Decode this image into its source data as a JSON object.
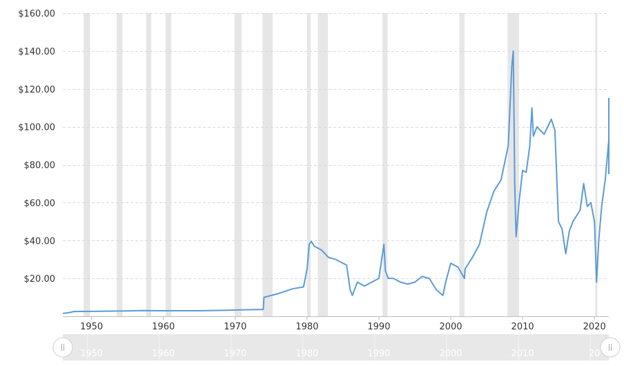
{
  "chart_data": {
    "type": "line",
    "y_tick_labels": [
      "$20.00",
      "$40.00",
      "$60.00",
      "$80.00",
      "$100.00",
      "$120.00",
      "$140.00",
      "$160.00"
    ],
    "y_tick_values": [
      20,
      40,
      60,
      80,
      100,
      120,
      140,
      160
    ],
    "x_tick_labels": [
      "1950",
      "1960",
      "1970",
      "1980",
      "1990",
      "2000",
      "2010",
      "2020"
    ],
    "x_tick_values": [
      1950,
      1960,
      1970,
      1980,
      1990,
      2000,
      2010,
      2020
    ],
    "navigator_tick_labels": [
      "1950",
      "1960",
      "1970",
      "1980",
      "1990",
      "2000",
      "2010",
      "20"
    ],
    "xlim": [
      1946,
      2022
    ],
    "ylim": [
      0,
      160
    ],
    "grid": true,
    "line_color": "#5b9bd5",
    "shade_color": "#e6e6e6",
    "recession_bands": [
      [
        1948.9,
        1949.8
      ],
      [
        1953.5,
        1954.3
      ],
      [
        1957.6,
        1958.3
      ],
      [
        1960.3,
        1961.1
      ],
      [
        1969.9,
        1970.9
      ],
      [
        1973.8,
        1975.2
      ],
      [
        1980.0,
        1980.5
      ],
      [
        1981.5,
        1982.9
      ],
      [
        1990.5,
        1991.2
      ],
      [
        2001.2,
        2001.9
      ],
      [
        2007.9,
        2009.5
      ],
      [
        2020.1,
        2020.4
      ]
    ],
    "series": [
      {
        "x": [
          1946.0,
          1947.0,
          1947.5,
          1950,
          1955,
          1957,
          1960,
          1965,
          1969,
          1970,
          1973.9,
          1974.0,
          1976,
          1978,
          1979.5,
          1980.0,
          1980.3,
          1980.6,
          1981,
          1982,
          1983,
          1984,
          1985,
          1985.5,
          1986.0,
          1986.3,
          1987,
          1988,
          1989,
          1990,
          1990.7,
          1990.9,
          1991.3,
          1992,
          1993,
          1994,
          1995,
          1996,
          1997,
          1998.0,
          1998.9,
          1999.3,
          2000,
          2001,
          2001.9,
          2002,
          2003,
          2004,
          2005,
          2006,
          2007,
          2008.0,
          2008.5,
          2008.7,
          2008.9,
          2009.1,
          2009.5,
          2010,
          2010.5,
          2011.0,
          2011.3,
          2011.5,
          2012,
          2013,
          2014.0,
          2014.5,
          2015,
          2015.5,
          2016.0,
          2016.5,
          2017,
          2018,
          2018.5,
          2019,
          2019.5,
          2020.0,
          2020.3,
          2020.6,
          2021,
          2021.5,
          2022.0,
          2022.4,
          2022.8,
          2023.0,
          2023.3
        ],
        "y": [
          1.5,
          2.0,
          2.5,
          2.6,
          2.8,
          3.0,
          2.9,
          2.9,
          3.2,
          3.3,
          3.6,
          10.0,
          12.0,
          14.5,
          15.5,
          25.0,
          38.0,
          39.5,
          37.0,
          35.0,
          31.0,
          30.0,
          28.0,
          27.0,
          14.0,
          11.0,
          18.0,
          16.0,
          18.0,
          20.0,
          38.0,
          24.0,
          20.0,
          20.0,
          18.0,
          17.0,
          18.0,
          21.0,
          20.0,
          14.0,
          11.0,
          18.0,
          28.0,
          26.0,
          20.0,
          25.0,
          31.0,
          38.0,
          55.0,
          66.0,
          72.0,
          90.0,
          132.0,
          140.0,
          70.0,
          42.0,
          60.0,
          77.0,
          76.0,
          90.0,
          110.0,
          95.0,
          100.0,
          96.0,
          104.0,
          98.0,
          50.0,
          46.0,
          33.0,
          45.0,
          50.0,
          56.0,
          70.0,
          58.0,
          60.0,
          50.0,
          18.0,
          40.0,
          58.0,
          72.0,
          93.0,
          115.0,
          85.0,
          80.0,
          75.0
        ]
      }
    ]
  }
}
